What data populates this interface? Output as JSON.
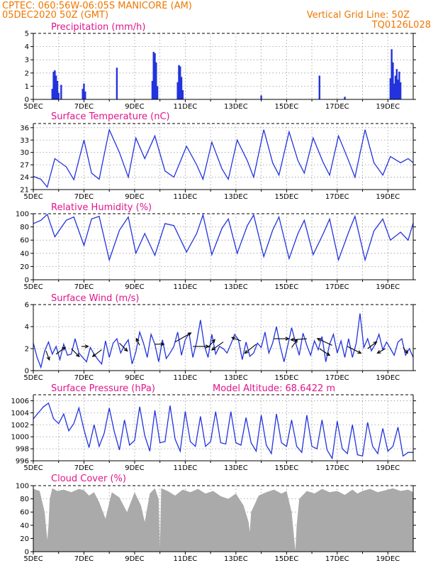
{
  "header": {
    "line1_left": "CPTEC:   060:56W-06:05S   MANICORE (AM)",
    "line2_left": "05DEC2020 50Z (GMT)",
    "line1_right": "Vertical Grid Line: 50Z",
    "line2_right": "TQ0126L028"
  },
  "x_tick_labels": [
    "5DEC",
    "7DEC",
    "9DEC",
    "11DEC",
    "13DEC",
    "15DEC",
    "17DEC",
    "19DEC"
  ],
  "colors": {
    "header": "#ee7700",
    "panel_title": "#e0158c",
    "line": "#2233dd",
    "precip_bar": "#2233dd",
    "cloud_fill": "#aaaaaa",
    "wind_arrow": "#000000"
  },
  "panels": {
    "precip": {
      "title": "Precipitation (mm/h)"
    },
    "temp": {
      "title": "Surface Temperature (nC)"
    },
    "rh": {
      "title": "Relative Humidity (%)"
    },
    "wind": {
      "title": "Surface Wind (m/s)"
    },
    "press": {
      "title": "Surface Pressure (hPa)",
      "note": "Model Altitude: 68.6422 m"
    },
    "cloud": {
      "title": "Cloud Cover (%)"
    }
  },
  "chart_data": [
    {
      "type": "bar",
      "title": "Precipitation (mm/h)",
      "ylim": [
        0,
        5
      ],
      "yticks": [
        0,
        1,
        2,
        3,
        4,
        5
      ],
      "x": [
        0.75,
        0.8,
        0.85,
        0.9,
        0.95,
        1.0,
        1.1,
        1.95,
        2.0,
        2.05,
        3.3,
        4.7,
        4.75,
        4.8,
        4.85,
        4.9,
        5.7,
        5.75,
        5.8,
        5.85,
        5.9,
        9.0,
        11.3,
        12.3,
        14.1,
        14.15,
        14.2,
        14.25,
        14.3,
        14.35,
        14.4,
        14.45,
        14.5
      ],
      "values": [
        0.8,
        2.1,
        2.2,
        1.8,
        1.4,
        0.5,
        1.1,
        0.8,
        1.2,
        0.6,
        2.4,
        1.4,
        3.6,
        3.5,
        2.8,
        1.0,
        1.3,
        2.6,
        2.5,
        1.7,
        0.7,
        0.3,
        1.8,
        0.2,
        1.6,
        3.8,
        2.8,
        1.2,
        1.8,
        2.3,
        1.5,
        2.1,
        1.3
      ]
    },
    {
      "type": "line",
      "title": "Surface Temperature (nC)",
      "ylim": [
        21,
        37
      ],
      "yticks": [
        21,
        24,
        27,
        30,
        33,
        36
      ],
      "x": [
        0,
        0.3,
        0.55,
        0.85,
        1.3,
        1.6,
        2.0,
        2.3,
        2.6,
        3.0,
        3.4,
        3.75,
        4.05,
        4.4,
        4.8,
        5.2,
        5.55,
        6.05,
        6.45,
        6.7,
        7.05,
        7.45,
        7.7,
        8.05,
        8.45,
        8.7,
        9.1,
        9.45,
        9.7,
        10.1,
        10.45,
        10.7,
        11.05,
        11.45,
        11.7,
        12.05,
        12.45,
        12.7,
        13.1,
        13.45,
        13.8,
        14.1,
        14.5,
        14.8,
        15.0
      ],
      "values": [
        24.2,
        23.5,
        21.6,
        28.5,
        26.5,
        23.4,
        33.0,
        25.0,
        23.5,
        35.5,
        30.0,
        24.0,
        33.5,
        28.5,
        34.0,
        25.5,
        24.0,
        31.5,
        27.0,
        23.5,
        32.5,
        26.0,
        23.5,
        33.0,
        28.0,
        24.0,
        35.5,
        27.5,
        24.5,
        35.0,
        28.0,
        25.0,
        33.5,
        27.5,
        24.5,
        34.0,
        28.0,
        24.0,
        35.5,
        27.5,
        24.5,
        29.0,
        27.5,
        28.5,
        27.5
      ]
    },
    {
      "type": "line",
      "title": "Relative Humidity (%)",
      "ylim": [
        0,
        100
      ],
      "yticks": [
        0,
        20,
        40,
        60,
        80,
        100
      ],
      "x": [
        0,
        0.3,
        0.55,
        0.85,
        1.3,
        1.6,
        2.0,
        2.3,
        2.6,
        3.0,
        3.4,
        3.75,
        4.05,
        4.4,
        4.8,
        5.2,
        5.55,
        6.05,
        6.45,
        6.7,
        7.05,
        7.45,
        7.7,
        8.05,
        8.45,
        8.7,
        9.1,
        9.45,
        9.7,
        10.1,
        10.45,
        10.7,
        11.05,
        11.45,
        11.7,
        12.05,
        12.45,
        12.7,
        13.1,
        13.45,
        13.8,
        14.1,
        14.5,
        14.8,
        15.0
      ],
      "values": [
        85,
        90,
        99,
        65,
        90,
        95,
        52,
        92,
        96,
        30,
        75,
        95,
        40,
        70,
        37,
        85,
        82,
        42,
        70,
        98,
        38,
        78,
        92,
        40,
        82,
        98,
        35,
        75,
        95,
        32,
        70,
        90,
        38,
        70,
        92,
        30,
        72,
        96,
        30,
        74,
        92,
        60,
        72,
        60,
        86
      ]
    },
    {
      "type": "line",
      "title": "Surface Wind (m/s)",
      "ylim": [
        0,
        6
      ],
      "yticks": [
        0,
        2,
        4,
        6
      ],
      "x": [
        0,
        0.15,
        0.3,
        0.45,
        0.6,
        0.75,
        0.9,
        1.05,
        1.2,
        1.35,
        1.5,
        1.65,
        1.8,
        1.95,
        2.1,
        2.25,
        2.4,
        2.55,
        2.7,
        2.85,
        3.0,
        3.15,
        3.3,
        3.45,
        3.6,
        3.75,
        3.9,
        4.05,
        4.2,
        4.35,
        4.5,
        4.65,
        4.8,
        4.95,
        5.1,
        5.25,
        5.4,
        5.55,
        5.7,
        5.85,
        6.0,
        6.15,
        6.3,
        6.45,
        6.6,
        6.75,
        6.9,
        7.05,
        7.2,
        7.35,
        7.5,
        7.65,
        7.8,
        7.95,
        8.1,
        8.25,
        8.4,
        8.55,
        8.7,
        8.85,
        9.0,
        9.15,
        9.3,
        9.45,
        9.6,
        9.75,
        9.9,
        10.05,
        10.2,
        10.35,
        10.5,
        10.65,
        10.8,
        10.95,
        11.1,
        11.25,
        11.4,
        11.55,
        11.7,
        11.85,
        12.0,
        12.15,
        12.3,
        12.45,
        12.6,
        12.75,
        12.9,
        13.05,
        13.2,
        13.35,
        13.5,
        13.65,
        13.8,
        13.95,
        14.1,
        14.25,
        14.4,
        14.55,
        14.7,
        14.85,
        15.0
      ],
      "values": [
        2.5,
        1.2,
        0.3,
        1.8,
        2.6,
        1.5,
        2.2,
        1.0,
        2.4,
        1.4,
        1.5,
        2.9,
        1.6,
        1.2,
        0.8,
        2.1,
        1.5,
        1.0,
        0.6,
        2.7,
        1.2,
        2.5,
        2.9,
        1.6,
        2.3,
        2.8,
        0.6,
        1.7,
        3.5,
        2.5,
        1.2,
        3.3,
        2.4,
        0.8,
        2.8,
        1.1,
        1.6,
        2.2,
        3.5,
        1.4,
        2.8,
        3.4,
        1.2,
        2.6,
        4.6,
        2.3,
        1.2,
        3.3,
        1.5,
        2.2,
        2.0,
        1.6,
        2.4,
        3.3,
        2.8,
        1.0,
        2.6,
        1.3,
        1.6,
        2.5,
        2.1,
        3.5,
        1.6,
        2.5,
        4.0,
        2.2,
        0.8,
        2.3,
        3.9,
        2.6,
        1.4,
        3.4,
        2.3,
        1.4,
        2.7,
        1.9,
        3.1,
        0.8,
        2.4,
        3.3,
        1.6,
        2.7,
        1.2,
        2.9,
        1.2,
        2.5,
        5.2,
        2.1,
        2.9,
        1.8,
        2.4,
        3.3,
        1.9,
        2.6,
        2.0,
        1.4,
        2.6,
        2.9,
        1.4,
        2.0,
        1.2
      ]
    },
    {
      "type": "line",
      "title": "Surface Pressure (hPa)",
      "ylim": [
        996,
        1007
      ],
      "yticks": [
        996,
        998,
        1000,
        1002,
        1004,
        1006
      ],
      "x": [
        0,
        0.2,
        0.4,
        0.6,
        0.8,
        1.0,
        1.2,
        1.4,
        1.6,
        1.8,
        2.0,
        2.2,
        2.4,
        2.6,
        2.8,
        3.0,
        3.2,
        3.4,
        3.6,
        3.8,
        4.0,
        4.2,
        4.4,
        4.6,
        4.8,
        5.0,
        5.2,
        5.4,
        5.6,
        5.8,
        6.0,
        6.2,
        6.4,
        6.6,
        6.8,
        7.0,
        7.2,
        7.4,
        7.6,
        7.8,
        8.0,
        8.2,
        8.4,
        8.6,
        8.8,
        9.0,
        9.2,
        9.4,
        9.6,
        9.8,
        10.0,
        10.2,
        10.4,
        10.6,
        10.8,
        11.0,
        11.2,
        11.4,
        11.6,
        11.8,
        12.0,
        12.2,
        12.4,
        12.6,
        12.8,
        13.0,
        13.2,
        13.4,
        13.6,
        13.8,
        14.0,
        14.2,
        14.4,
        14.6,
        14.8,
        15.0
      ],
      "values": [
        1003.0,
        1004.0,
        1005.0,
        1005.6,
        1003.0,
        1002.2,
        1003.8,
        1001.0,
        1002.2,
        1004.8,
        1001.2,
        998.2,
        1002.0,
        998.4,
        1000.6,
        1004.8,
        1000.8,
        997.8,
        1002.8,
        998.6,
        999.4,
        1005.0,
        1000.2,
        997.6,
        1004.4,
        999.0,
        999.2,
        1005.2,
        999.6,
        997.6,
        1004.2,
        999.2,
        998.4,
        1003.4,
        998.4,
        999.2,
        1004.2,
        999.0,
        998.8,
        1004.2,
        999.0,
        998.6,
        1003.2,
        999.0,
        997.6,
        1003.6,
        998.6,
        997.2,
        1003.8,
        999.0,
        998.4,
        1002.8,
        998.4,
        997.4,
        1003.6,
        998.4,
        998.0,
        1002.8,
        997.8,
        996.4,
        1002.6,
        998.0,
        997.2,
        1002.0,
        997.0,
        996.8,
        1002.4,
        998.4,
        997.2,
        1001.4,
        997.6,
        998.4,
        1001.6,
        996.8,
        997.4,
        997.4
      ]
    },
    {
      "type": "area",
      "title": "Cloud Cover (%)",
      "ylim": [
        0,
        100
      ],
      "yticks": [
        0,
        20,
        40,
        60,
        80,
        100
      ],
      "x": [
        0,
        0.25,
        0.45,
        0.55,
        0.6,
        0.65,
        0.75,
        0.95,
        1.2,
        1.5,
        1.8,
        2.0,
        2.2,
        2.4,
        2.6,
        2.85,
        3.1,
        3.4,
        3.7,
        4.0,
        4.25,
        4.4,
        4.6,
        4.8,
        4.95,
        5.0,
        5.05,
        5.3,
        5.6,
        5.9,
        6.2,
        6.5,
        6.8,
        7.1,
        7.4,
        7.7,
        8.0,
        8.3,
        8.5,
        8.55,
        8.6,
        8.9,
        9.2,
        9.5,
        9.8,
        10.0,
        10.2,
        10.3,
        10.35,
        10.4,
        10.5,
        10.8,
        11.1,
        11.4,
        11.7,
        12.0,
        12.3,
        12.6,
        12.8,
        13.0,
        13.3,
        13.6,
        13.9,
        14.2,
        14.5,
        14.8,
        15.0
      ],
      "values": [
        95,
        92,
        60,
        18,
        40,
        80,
        96,
        92,
        94,
        90,
        95,
        93,
        85,
        90,
        75,
        50,
        90,
        82,
        60,
        90,
        70,
        45,
        88,
        96,
        80,
        5,
        96,
        92,
        85,
        94,
        90,
        95,
        88,
        92,
        84,
        80,
        88,
        70,
        45,
        30,
        60,
        85,
        90,
        94,
        88,
        92,
        60,
        20,
        2,
        40,
        80,
        92,
        88,
        95,
        90,
        92,
        86,
        94,
        88,
        92,
        95,
        90,
        93,
        96,
        92,
        94,
        90
      ]
    }
  ],
  "wind_arrows": {
    "x": [
      0.5,
      0.9,
      1.5,
      1.9,
      2.7,
      3.4,
      4.2,
      4.8,
      5.6,
      6.3,
      6.9,
      7.5,
      8.2,
      8.8,
      9.5,
      10.2,
      10.8,
      11.3,
      11.8,
      12.4,
      13.2,
      13.9,
      14.6
    ],
    "vals": [
      1.8,
      1.5,
      2.0,
      2.2,
      1.9,
      2.5,
      2.3,
      2.4,
      2.6,
      2.2,
      2.1,
      2.6,
      2.7,
      2.4,
      2.9,
      2.1,
      2.9,
      2.0,
      2.3,
      2.2,
      2.0,
      2.0,
      2.1
    ],
    "u": [
      0.6,
      1.6,
      1.4,
      1.2,
      -1.6,
      1.4,
      -0.6,
      1.6,
      2.8,
      2.8,
      1.2,
      -2.0,
      -1.6,
      -2.0,
      2.6,
      1.0,
      -2.8,
      1.8,
      -2.6,
      2.4,
      1.6,
      -1.4,
      0.8
    ],
    "v": [
      -1.6,
      1.2,
      -1.4,
      0.0,
      -1.2,
      -1.4,
      1.2,
      0.0,
      1.6,
      0.0,
      1.4,
      -1.4,
      0.6,
      -1.6,
      0.0,
      1.4,
      -0.2,
      -1.2,
      1.2,
      -1.2,
      1.2,
      -0.8,
      -1.0
    ]
  }
}
